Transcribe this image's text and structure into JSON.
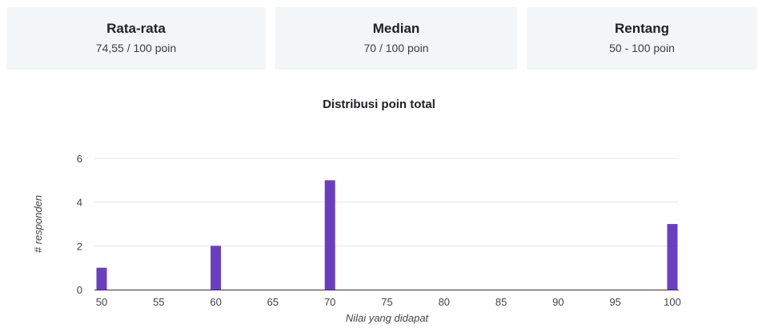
{
  "stats": [
    {
      "title": "Rata-rata",
      "value": "74,55 / 100 poin"
    },
    {
      "title": "Median",
      "value": "70 / 100 poin"
    },
    {
      "title": "Rentang",
      "value": "50 - 100 poin"
    }
  ],
  "chart_data": {
    "type": "bar",
    "title": "Distribusi poin total",
    "xlabel": "Nilai yang didapat",
    "ylabel": "# responden",
    "x": [
      50,
      60,
      70,
      100
    ],
    "values": [
      1,
      2,
      5,
      3
    ],
    "xticks": [
      "50",
      "55",
      "60",
      "65",
      "70",
      "75",
      "80",
      "85",
      "90",
      "95",
      "100"
    ],
    "yticks": [
      "0",
      "2",
      "4",
      "6"
    ],
    "xlim": [
      50,
      100
    ],
    "ylim": [
      0,
      6
    ],
    "grid": true,
    "bar_color": "#6a3fbf"
  }
}
